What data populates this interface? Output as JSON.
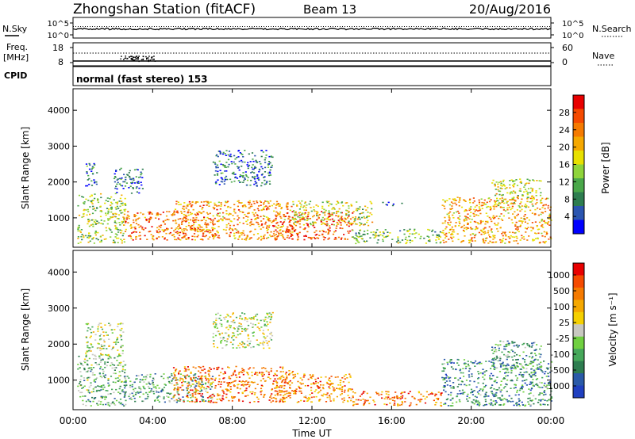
{
  "header": {
    "station": "Zhongshan Station (fitACF)",
    "beam": "Beam 13",
    "date": "20/Aug/2016"
  },
  "strips": {
    "nsky_label": "N.Sky",
    "nsky_ticks": [
      "10^5",
      "10^0"
    ],
    "nsearch_label": "N.Search",
    "nsearch_ticks": [
      "10^5",
      "10^0"
    ],
    "freq_label_1": "Freq.",
    "freq_label_2": "[MHz]",
    "freq_ticks": [
      "18",
      "8"
    ],
    "nave_label": "Nave",
    "nave_ticks": [
      "60",
      "0"
    ],
    "cpid_label": "CPID",
    "cpid_text": "normal (fast stereo) 153"
  },
  "chart_data": [
    {
      "type": "heatmap",
      "panel": "power",
      "xlabel": "",
      "ylabel": "Slant Range [km]",
      "xlim": [
        0,
        24
      ],
      "ylim": [
        180,
        4600
      ],
      "yticks": [
        "1000",
        "2000",
        "3000",
        "4000"
      ],
      "colorbar": {
        "label": "Power [dB]",
        "ticks": [
          "4",
          "8",
          "12",
          "16",
          "20",
          "24",
          "28"
        ],
        "colors": [
          "#0000ff",
          "#2b55b0",
          "#2e7d50",
          "#4aa84a",
          "#8fd43a",
          "#e8e000",
          "#f5a800",
          "#f57a00",
          "#f54a00",
          "#e80000"
        ]
      },
      "regions": [
        {
          "t0": 0.2,
          "t1": 2.6,
          "r0": 300,
          "r1": 1700,
          "level": 0.45
        },
        {
          "t0": 0.6,
          "t1": 1.2,
          "r0": 1900,
          "r1": 2600,
          "level": 0.25
        },
        {
          "t0": 2.0,
          "t1": 3.5,
          "r0": 1700,
          "r1": 2400,
          "level": 0.2
        },
        {
          "t0": 2.5,
          "t1": 7.0,
          "r0": 400,
          "r1": 1200,
          "level": 0.78
        },
        {
          "t0": 5.0,
          "t1": 11.0,
          "r0": 400,
          "r1": 1500,
          "level": 0.7
        },
        {
          "t0": 7.0,
          "t1": 10.0,
          "r0": 1900,
          "r1": 2900,
          "level": 0.2
        },
        {
          "t0": 10.0,
          "t1": 14.0,
          "r0": 400,
          "r1": 1200,
          "level": 0.85
        },
        {
          "t0": 11.0,
          "t1": 15.0,
          "r0": 800,
          "r1": 1500,
          "level": 0.5
        },
        {
          "t0": 14.0,
          "t1": 18.5,
          "r0": 300,
          "r1": 700,
          "level": 0.4
        },
        {
          "t0": 15.5,
          "t1": 16.5,
          "r0": 1350,
          "r1": 1450,
          "level": 0.2
        },
        {
          "t0": 18.5,
          "t1": 24.0,
          "r0": 300,
          "r1": 1600,
          "level": 0.68
        },
        {
          "t0": 21.0,
          "t1": 23.5,
          "r0": 1300,
          "r1": 2100,
          "level": 0.5
        }
      ]
    },
    {
      "type": "heatmap",
      "panel": "velocity",
      "xlabel": "Time UT",
      "ylabel": "Slant Range [km]",
      "xlim": [
        0,
        24
      ],
      "ylim": [
        180,
        4600
      ],
      "xticks": [
        "00:00",
        "04:00",
        "08:00",
        "12:00",
        "16:00",
        "20:00",
        "00:00"
      ],
      "yticks": [
        "1000",
        "2000",
        "3000",
        "4000"
      ],
      "colorbar": {
        "label": "Velocity [m s⁻¹]",
        "ticks": [
          "1000",
          "500",
          "100",
          "25",
          "-25",
          "-100",
          "-500",
          "-1000"
        ],
        "colors": [
          "#2040c0",
          "#2a5aa8",
          "#2e7d50",
          "#46a85a",
          "#70d040",
          "#c8c8c0",
          "#f5d000",
          "#f5a800",
          "#f57a00",
          "#f54a00",
          "#e80000"
        ]
      },
      "regions": [
        {
          "t0": 0.2,
          "t1": 2.6,
          "r0": 300,
          "r1": 1700,
          "level": 0.35
        },
        {
          "t0": 0.6,
          "t1": 2.5,
          "r0": 1700,
          "r1": 2600,
          "level": 0.5
        },
        {
          "t0": 2.5,
          "t1": 7.0,
          "r0": 400,
          "r1": 1200,
          "level": 0.3
        },
        {
          "t0": 5.0,
          "t1": 11.0,
          "r0": 400,
          "r1": 1400,
          "level": 0.78
        },
        {
          "t0": 7.0,
          "t1": 10.0,
          "r0": 1900,
          "r1": 2900,
          "level": 0.5
        },
        {
          "t0": 10.0,
          "t1": 14.0,
          "r0": 400,
          "r1": 1200,
          "level": 0.75
        },
        {
          "t0": 14.0,
          "t1": 18.5,
          "r0": 300,
          "r1": 700,
          "level": 0.8
        },
        {
          "t0": 18.5,
          "t1": 24.0,
          "r0": 300,
          "r1": 1600,
          "level": 0.25
        },
        {
          "t0": 21.0,
          "t1": 23.5,
          "r0": 1300,
          "r1": 2100,
          "level": 0.3
        }
      ]
    }
  ]
}
